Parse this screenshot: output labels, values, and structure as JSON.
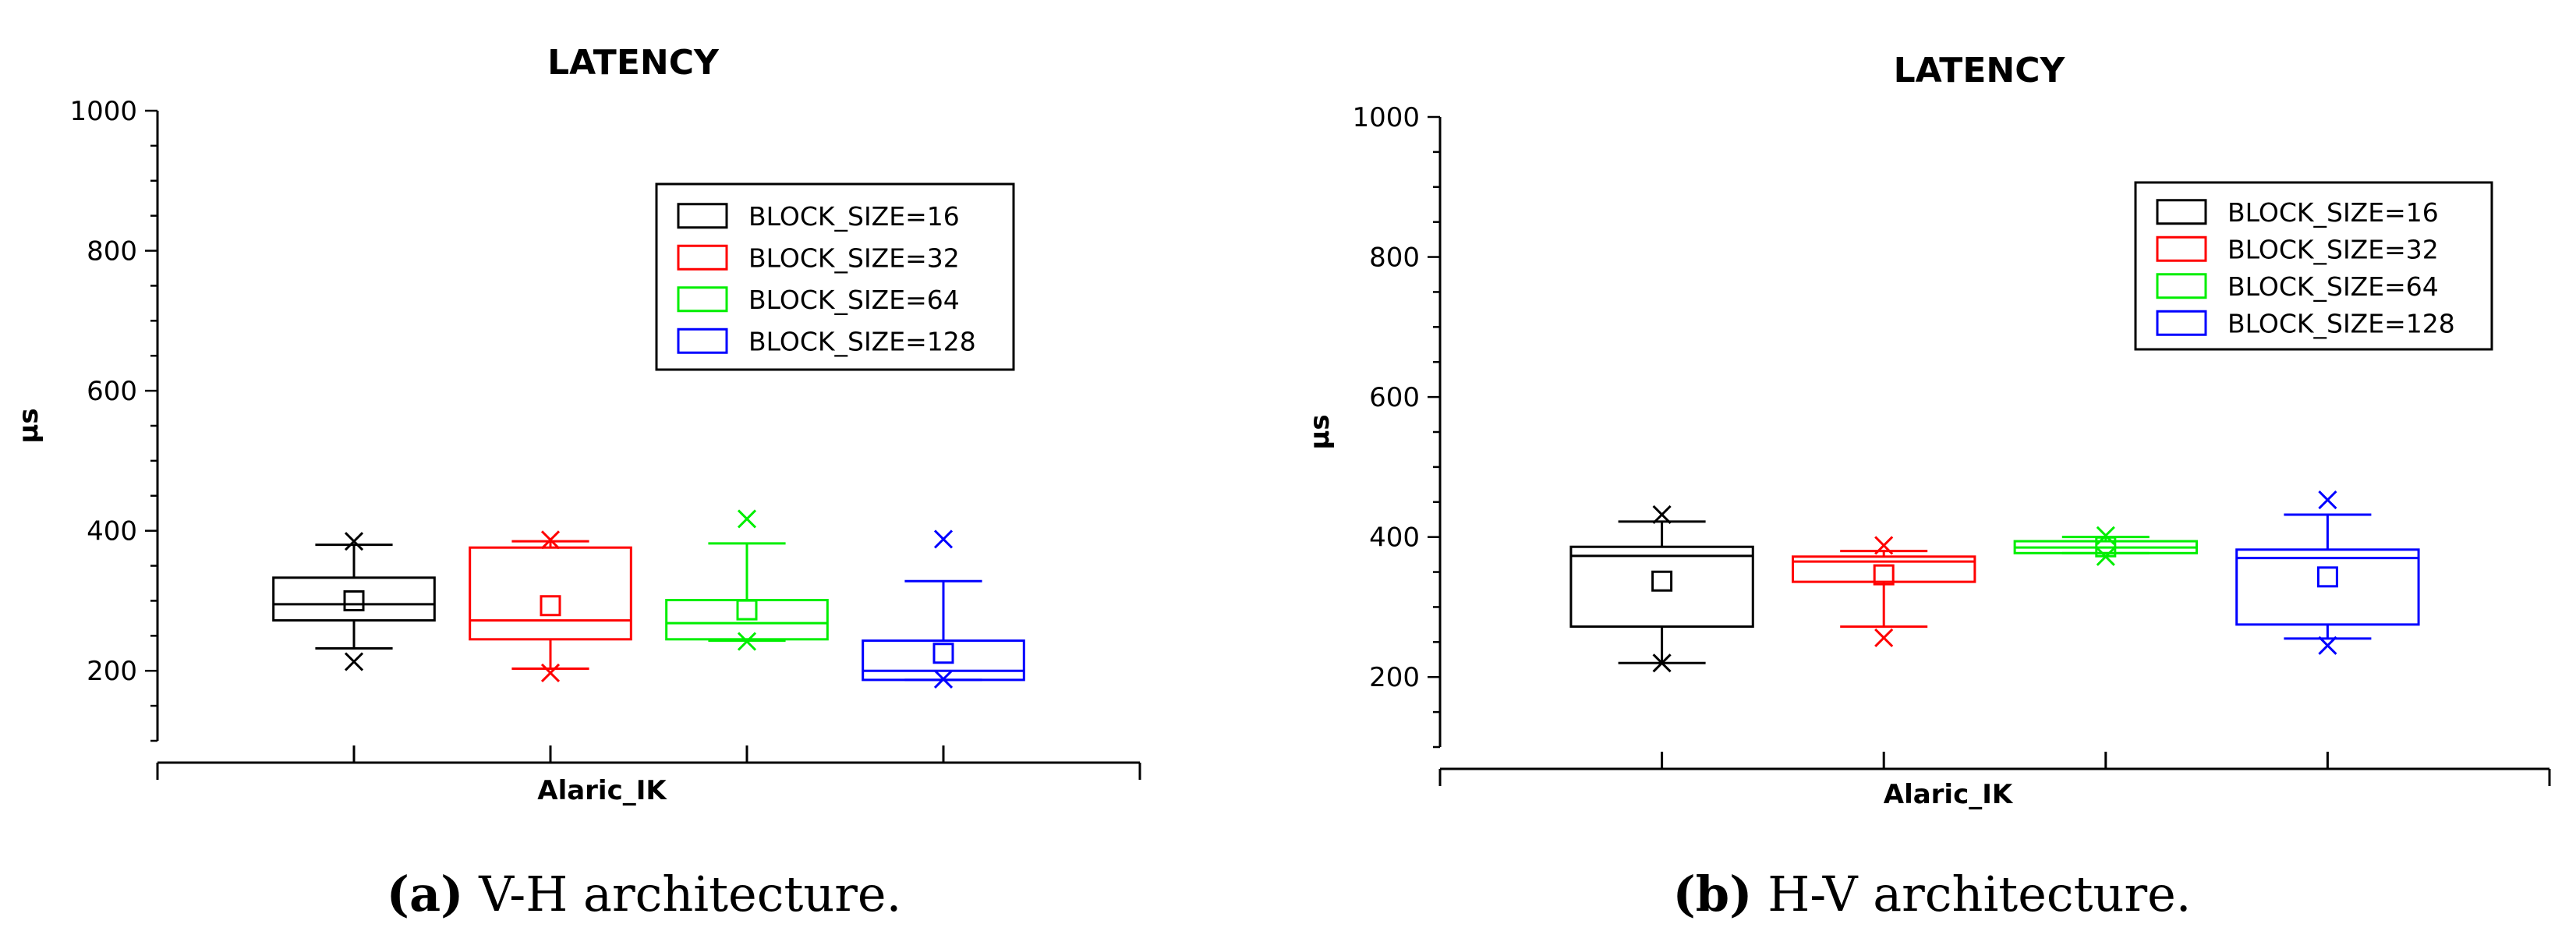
{
  "chart_data": [
    {
      "type": "box",
      "title": "LATENCY",
      "xlabel": "Alaric_IK",
      "ylabel": "μs",
      "ylim": [
        100,
        1000
      ],
      "yticks": [
        200,
        400,
        600,
        800,
        1000
      ],
      "legend_position": "top-right",
      "series": [
        {
          "name": "BLOCK_SIZE=16",
          "color": "#000000",
          "q1": 272,
          "median": 295,
          "q3": 333,
          "mean": 300,
          "whisker_low": 232,
          "whisker_high": 380,
          "min": 213,
          "max": 385
        },
        {
          "name": "BLOCK_SIZE=32",
          "color": "#ff0000",
          "q1": 245,
          "median": 272,
          "q3": 376,
          "mean": 293,
          "whisker_low": 203,
          "whisker_high": 385,
          "min": 197,
          "max": 387
        },
        {
          "name": "BLOCK_SIZE=64",
          "color": "#00ee00",
          "q1": 245,
          "median": 268,
          "q3": 301,
          "mean": 287,
          "whisker_low": 243,
          "whisker_high": 382,
          "min": 242,
          "max": 417
        },
        {
          "name": "BLOCK_SIZE=128",
          "color": "#0000ff",
          "q1": 187,
          "median": 200,
          "q3": 243,
          "mean": 225,
          "whisker_low": 187,
          "whisker_high": 328,
          "min": 188,
          "max": 388
        }
      ],
      "caption_label": "(a)",
      "caption_text": "V-H architecture."
    },
    {
      "type": "box",
      "title": "LATENCY",
      "xlabel": "Alaric_IK",
      "ylabel": "μs",
      "ylim": [
        100,
        1000
      ],
      "yticks": [
        200,
        400,
        600,
        800,
        1000
      ],
      "legend_position": "top-right",
      "series": [
        {
          "name": "BLOCK_SIZE=16",
          "color": "#000000",
          "q1": 272,
          "median": 373,
          "q3": 386,
          "mean": 337,
          "whisker_low": 220,
          "whisker_high": 422,
          "min": 220,
          "max": 432
        },
        {
          "name": "BLOCK_SIZE=32",
          "color": "#ff0000",
          "q1": 336,
          "median": 365,
          "q3": 372,
          "mean": 346,
          "whisker_low": 272,
          "whisker_high": 380,
          "min": 256,
          "max": 388
        },
        {
          "name": "BLOCK_SIZE=64",
          "color": "#00ee00",
          "q1": 377,
          "median": 385,
          "q3": 394,
          "mean": 386,
          "whisker_low": 377,
          "whisker_high": 400,
          "min": 372,
          "max": 402
        },
        {
          "name": "BLOCK_SIZE=128",
          "color": "#0000ff",
          "q1": 275,
          "median": 370,
          "q3": 382,
          "mean": 343,
          "whisker_low": 255,
          "whisker_high": 432,
          "min": 245,
          "max": 453
        }
      ],
      "caption_label": "(b)",
      "caption_text": "H-V architecture."
    }
  ]
}
